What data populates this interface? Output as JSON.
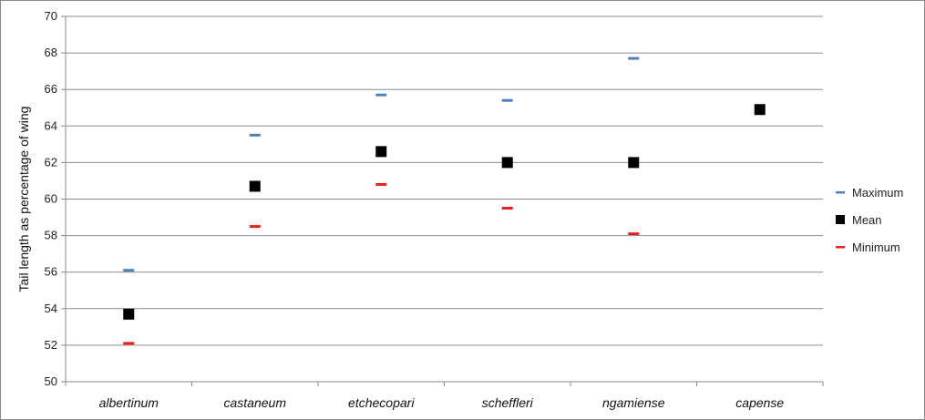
{
  "chart_data": {
    "type": "scatter",
    "ylabel": "Tail length as percentage of wing",
    "ylim": [
      50,
      70
    ],
    "ytick_step": 2,
    "grid": true,
    "legend_position": "right",
    "categories": [
      "albertinum",
      "castaneum",
      "etchecopari",
      "scheffleri",
      "ngamiense",
      "capense"
    ],
    "series": [
      {
        "name": "Maximum",
        "color": "#4f81bd",
        "marker": "dash",
        "values": [
          56.1,
          63.5,
          65.7,
          65.4,
          67.7,
          null
        ]
      },
      {
        "name": "Mean",
        "color": "#000000",
        "marker": "square",
        "values": [
          53.7,
          60.7,
          62.6,
          62.0,
          62.0,
          64.9
        ]
      },
      {
        "name": "Minimum",
        "color": "#e8201f",
        "marker": "dash",
        "values": [
          52.1,
          58.5,
          60.8,
          59.5,
          58.1,
          null
        ]
      }
    ]
  }
}
